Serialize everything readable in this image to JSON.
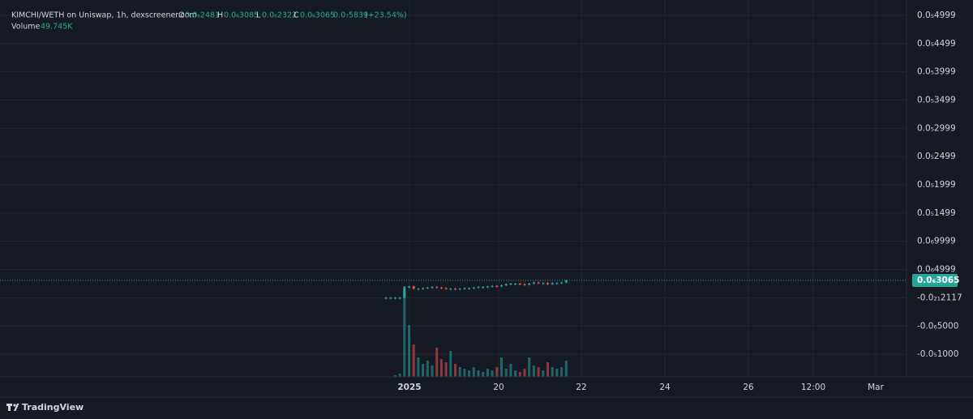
{
  "chart_data": {
    "type": "candle",
    "header": {
      "symbol": "KIMCHI/WETH on Uniswap, 1h, dexscreener.com",
      "open_label": "O",
      "open": "0.0₆2481",
      "high_label": "H",
      "high": "0.0₆3085",
      "low_label": "L",
      "low": "0.0₆2322",
      "close_label": "C",
      "close": "0.0₆3065",
      "change": "0.0₇5839",
      "change_pct": "(+23.54%)",
      "volume_label": "Volume",
      "volume": "49.745K"
    },
    "ylim": [
      -1.4e-06,
      5.27e-06
    ],
    "yticks": [
      {
        "value": 4.999e-06,
        "label": "0.0₅4999"
      },
      {
        "value": 4.499e-06,
        "label": "0.0₅4499"
      },
      {
        "value": 3.999e-06,
        "label": "0.0₅3999"
      },
      {
        "value": 3.499e-06,
        "label": "0.0₅3499"
      },
      {
        "value": 2.999e-06,
        "label": "0.0₅2999"
      },
      {
        "value": 2.499e-06,
        "label": "0.0₅2499"
      },
      {
        "value": 1.999e-06,
        "label": "0.0₅1999"
      },
      {
        "value": 1.499e-06,
        "label": "0.0₅1499"
      },
      {
        "value": 9.999e-07,
        "label": "0.0₆9999"
      },
      {
        "value": 4.999e-07,
        "label": "0.0₆4999"
      },
      {
        "value": -2.117e-22,
        "label": "-0.0₂₁2117"
      },
      {
        "value": -5e-07,
        "label": "-0.0₆5000"
      },
      {
        "value": -1e-06,
        "label": "-0.0₅1000"
      }
    ],
    "current_price": 3.065e-07,
    "x_labels": [
      "2025",
      "20",
      "22",
      "24",
      "26",
      "12:00",
      "Mar"
    ],
    "grid": true,
    "up_color": "#26a69a",
    "down_color": "#ef5350",
    "series": [
      {
        "name": "Close",
        "values": [
          0,
          0,
          0,
          0,
          1.8e-07,
          2e-07,
          1.6e-07,
          1.6e-07,
          1.7e-07,
          1.8e-07,
          1.9e-07,
          1.8e-07,
          1.7e-07,
          1.6e-07,
          1.6e-07,
          1.5e-07,
          1.6e-07,
          1.7e-07,
          1.7e-07,
          1.8e-07,
          1.9e-07,
          1.9e-07,
          2e-07,
          2.1e-07,
          2e-07,
          2.2e-07,
          2.4e-07,
          2.5e-07,
          2.5e-07,
          2.4e-07,
          2.3e-07,
          2.5e-07,
          2.7e-07,
          2.6e-07,
          2.6e-07,
          2.4e-07,
          2.6e-07,
          2.6e-07,
          2.7e-07,
          3.065e-07
        ]
      },
      {
        "name": "Volume",
        "values": [
          0,
          0,
          5000,
          10000,
          280000,
          160000,
          100000,
          60000,
          40000,
          50000,
          35000,
          90000,
          55000,
          45000,
          80000,
          40000,
          30000,
          25000,
          20000,
          30000,
          20000,
          15000,
          25000,
          20000,
          30000,
          60000,
          25000,
          40000,
          20000,
          15000,
          25000,
          60000,
          35000,
          30000,
          20000,
          45000,
          30000,
          25000,
          30000,
          49745
        ]
      }
    ],
    "volume_lim": [
      0,
      300000
    ],
    "brand": "TradingView"
  }
}
